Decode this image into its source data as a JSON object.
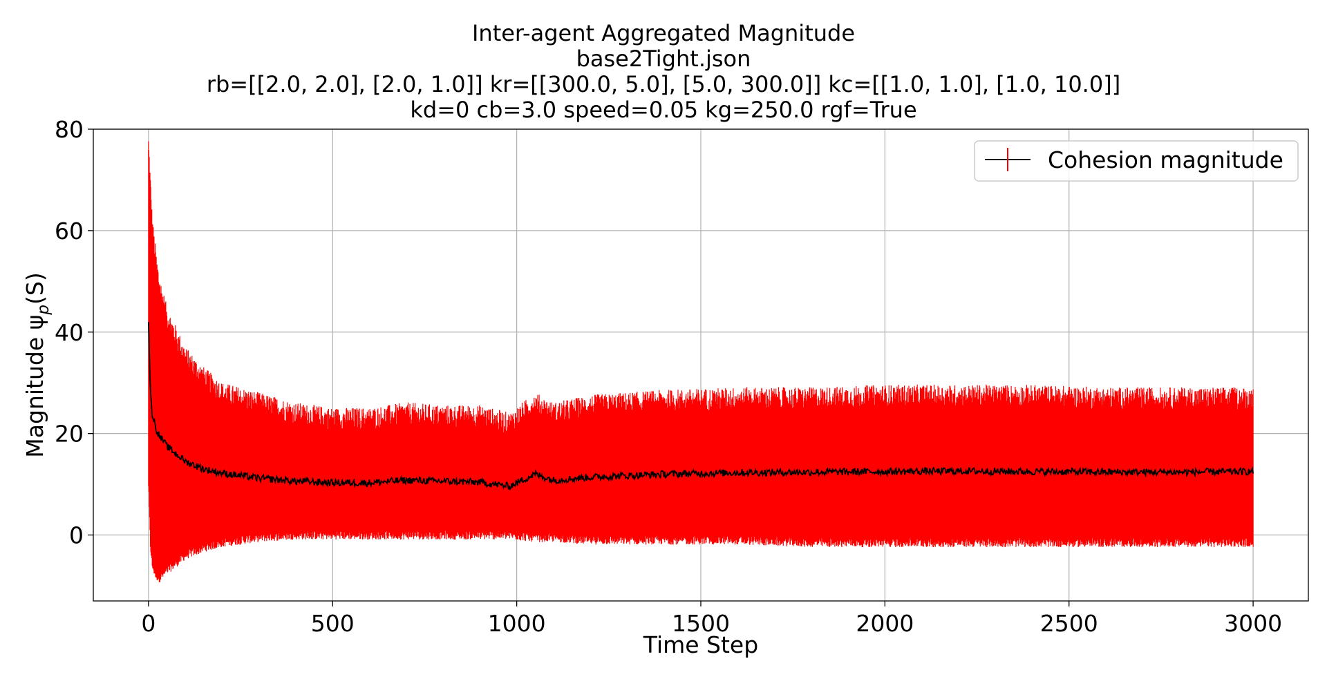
{
  "chart_data": {
    "type": "line",
    "title_lines": [
      "Inter-agent Aggregated Magnitude",
      "base2Tight.json",
      "rb=[[2.0, 2.0], [2.0, 1.0]] kr=[[300.0, 5.0], [5.0, 300.0]] kc=[[1.0, 1.0], [1.0, 10.0]]",
      "kd=0 cb=3.0 speed=0.05 kg=250.0 rgf=True"
    ],
    "xlabel": "Time Step",
    "ylabel": "Magnitude ψ",
    "ylabel_sub": "p",
    "ylabel_suffix": "(S)",
    "xlim": [
      -150,
      3150
    ],
    "ylim": [
      -13,
      80
    ],
    "x_ticks": [
      0,
      500,
      1000,
      1500,
      2000,
      2500,
      3000
    ],
    "y_ticks": [
      0,
      20,
      40,
      60,
      80
    ],
    "grid": true,
    "legend": {
      "placement": "upper right",
      "entries": [
        "Cohesion magnitude"
      ]
    },
    "colors": {
      "mean_line": "#000000",
      "error_bars": "#ff0000",
      "grid": "#b0b0b0"
    },
    "series": [
      {
        "name": "Cohesion magnitude",
        "error_type": "vertical error bars",
        "points": [
          {
            "x": 0,
            "y": 42,
            "lo": 10,
            "hi": 76
          },
          {
            "x": 5,
            "y": 28,
            "lo": -2,
            "hi": 68
          },
          {
            "x": 10,
            "y": 24,
            "lo": -6,
            "hi": 60
          },
          {
            "x": 20,
            "y": 21,
            "lo": -8,
            "hi": 53
          },
          {
            "x": 30,
            "y": 19.5,
            "lo": -8.5,
            "hi": 48
          },
          {
            "x": 50,
            "y": 17.5,
            "lo": -7,
            "hi": 42
          },
          {
            "x": 75,
            "y": 16,
            "lo": -5.5,
            "hi": 38
          },
          {
            "x": 100,
            "y": 14.5,
            "lo": -4,
            "hi": 34
          },
          {
            "x": 150,
            "y": 13,
            "lo": -2.5,
            "hi": 30
          },
          {
            "x": 200,
            "y": 12.2,
            "lo": -1.5,
            "hi": 27
          },
          {
            "x": 300,
            "y": 11.2,
            "lo": -0.5,
            "hi": 25
          },
          {
            "x": 400,
            "y": 10.6,
            "lo": 0,
            "hi": 23
          },
          {
            "x": 500,
            "y": 10.3,
            "lo": 0,
            "hi": 22
          },
          {
            "x": 600,
            "y": 10.3,
            "lo": 0,
            "hi": 22
          },
          {
            "x": 700,
            "y": 10.8,
            "lo": 0,
            "hi": 23
          },
          {
            "x": 800,
            "y": 10.6,
            "lo": 0,
            "hi": 22.5
          },
          {
            "x": 900,
            "y": 10.4,
            "lo": 0,
            "hi": 22.5
          },
          {
            "x": 980,
            "y": 9.6,
            "lo": 0,
            "hi": 21
          },
          {
            "x": 1050,
            "y": 12.0,
            "lo": -0.5,
            "hi": 25
          },
          {
            "x": 1100,
            "y": 10.8,
            "lo": -0.5,
            "hi": 23
          },
          {
            "x": 1200,
            "y": 11.4,
            "lo": -1,
            "hi": 24.5
          },
          {
            "x": 1400,
            "y": 12.0,
            "lo": -1,
            "hi": 25.5
          },
          {
            "x": 1600,
            "y": 12.3,
            "lo": -1,
            "hi": 26
          },
          {
            "x": 1800,
            "y": 12.4,
            "lo": -1.5,
            "hi": 26
          },
          {
            "x": 2000,
            "y": 12.5,
            "lo": -1.5,
            "hi": 26.5
          },
          {
            "x": 2200,
            "y": 12.6,
            "lo": -1.5,
            "hi": 26.5
          },
          {
            "x": 2400,
            "y": 12.5,
            "lo": -1.5,
            "hi": 26.5
          },
          {
            "x": 2600,
            "y": 12.4,
            "lo": -1.5,
            "hi": 26
          },
          {
            "x": 2800,
            "y": 12.4,
            "lo": -1.5,
            "hi": 26
          },
          {
            "x": 3000,
            "y": 12.5,
            "lo": -1.5,
            "hi": 26
          }
        ]
      }
    ]
  }
}
